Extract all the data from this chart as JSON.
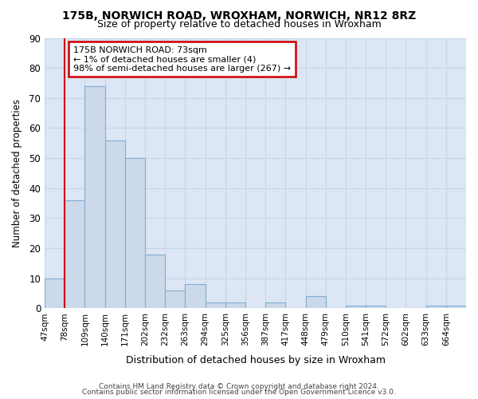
{
  "title": "175B, NORWICH ROAD, WROXHAM, NORWICH, NR12 8RZ",
  "subtitle": "Size of property relative to detached houses in Wroxham",
  "xlabel": "Distribution of detached houses by size in Wroxham",
  "ylabel": "Number of detached properties",
  "bin_labels": [
    "47sqm",
    "78sqm",
    "109sqm",
    "140sqm",
    "171sqm",
    "202sqm",
    "232sqm",
    "263sqm",
    "294sqm",
    "325sqm",
    "356sqm",
    "387sqm",
    "417sqm",
    "448sqm",
    "479sqm",
    "510sqm",
    "541sqm",
    "572sqm",
    "602sqm",
    "633sqm",
    "664sqm"
  ],
  "bar_values": [
    10,
    36,
    74,
    56,
    50,
    18,
    6,
    8,
    2,
    2,
    0,
    2,
    0,
    4,
    0,
    1,
    1,
    0,
    0,
    1,
    1
  ],
  "bar_color": "#ccd9ea",
  "bar_edge_color": "#7fadd4",
  "vline_color": "#cc0000",
  "annotation_lines": [
    "175B NORWICH ROAD: 73sqm",
    "← 1% of detached houses are smaller (4)",
    "98% of semi-detached houses are larger (267) →"
  ],
  "annotation_box_color": "#ffffff",
  "annotation_box_edge": "#cc0000",
  "footnote1": "Contains HM Land Registry data © Crown copyright and database right 2024.",
  "footnote2": "Contains public sector information licensed under the Open Government Licence v3.0.",
  "ylim": [
    0,
    90
  ],
  "yticks": [
    0,
    10,
    20,
    30,
    40,
    50,
    60,
    70,
    80,
    90
  ],
  "grid_color": "#c8d4e8",
  "background_color": "#dce6f5"
}
